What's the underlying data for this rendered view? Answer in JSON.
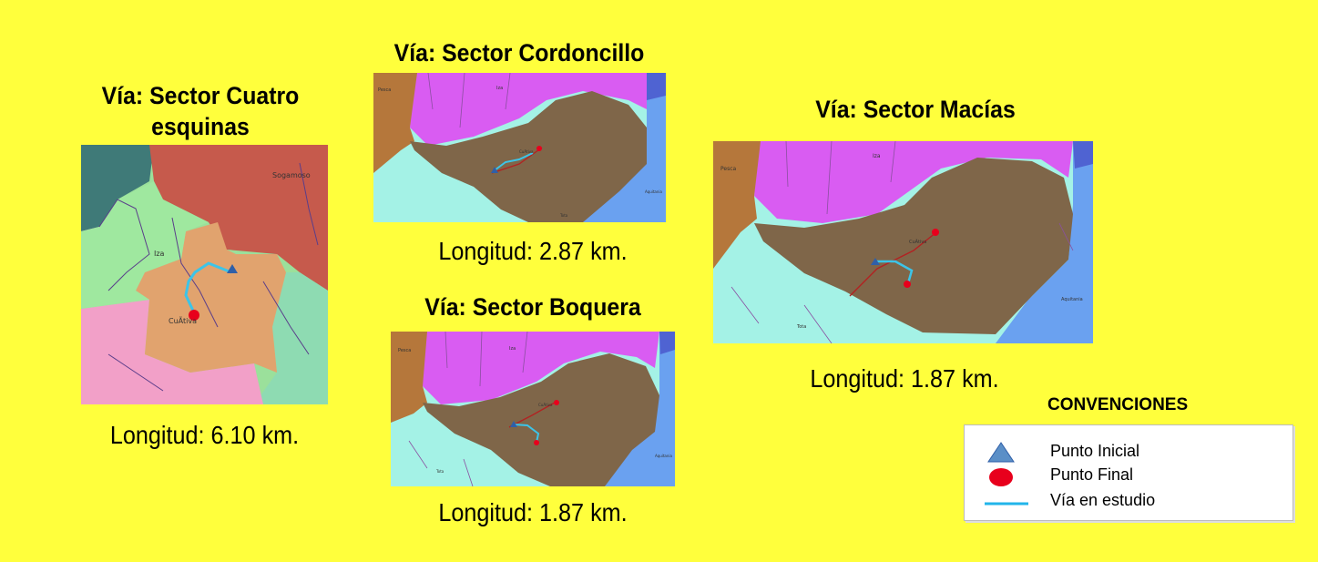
{
  "maps": {
    "cuatro": {
      "title_line1": "Vía: Sector Cuatro",
      "title_line2": "esquinas",
      "length": "Longitud: 6.10 km.",
      "labels": {
        "town1": "Sogamoso",
        "town2": "Iza",
        "town3": "CuÃ­tiva"
      }
    },
    "cordoncillo": {
      "title": "Vía: Sector Cordoncillo",
      "length": "Longitud: 2.87 km.",
      "labels": {
        "town1": "Pesca",
        "town2": "Iza",
        "town3": "CuÃ­tiva",
        "town4": "Aquitania",
        "town5": "Tota"
      }
    },
    "boquera": {
      "title": "Vía: Sector Boquera",
      "length": "Longitud: 1.87 km.",
      "labels": {
        "town1": "Pesca",
        "town2": "Iza",
        "town3": "CuÃ­tiva",
        "town4": "Aquitania",
        "town5": "Tota"
      }
    },
    "macias": {
      "title": "Vía: Sector Macías",
      "length": "Longitud: 1.87 km.",
      "labels": {
        "town1": "Pesca",
        "town2": "Iza",
        "town3": "CuÃ­tiva",
        "town4": "Aquitania",
        "town5": "Tota"
      }
    }
  },
  "legend": {
    "title": "CONVENCIONES",
    "items": [
      {
        "label": "Punto Inicial",
        "icon": "blue-triangle",
        "color": "#5b8fc7"
      },
      {
        "label": "Punto Final",
        "icon": "red-circle",
        "color": "#e8001c"
      },
      {
        "label": "Vía en estudio",
        "icon": "cyan-line",
        "color": "#22b5ea"
      }
    ]
  },
  "colors": {
    "background": "#ffff3c",
    "municipality_brown": "#7f6649",
    "magenta": "#d95cf2",
    "light_cyan": "#a4f2e6",
    "blue": "#6aa1f0",
    "orange_brown": "#b5773b",
    "study_road": "#3cc4e8",
    "road_red": "#b22222"
  }
}
